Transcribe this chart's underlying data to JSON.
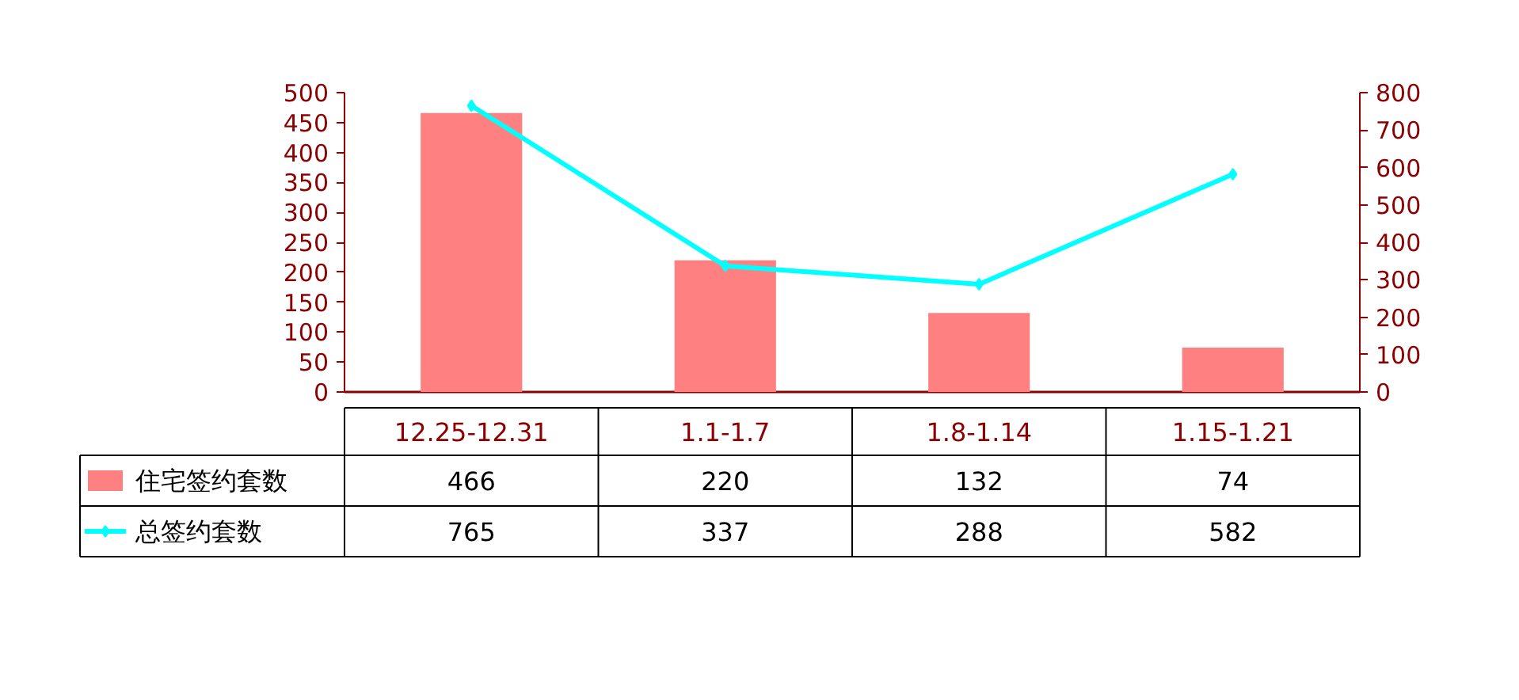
{
  "chart_data": {
    "type": "bar",
    "categories": [
      "12.25-12.31",
      "1.1-1.7",
      "1.8-1.14",
      "1.15-1.21"
    ],
    "series": [
      {
        "name": "住宅签约套数",
        "color": "#ff8080",
        "values": [
          466,
          220,
          132,
          74
        ]
      },
      {
        "name": "总签约套数",
        "type": "line",
        "axis": "y2",
        "color": "#00ffff",
        "values": [
          765,
          337,
          288,
          582
        ]
      }
    ],
    "ylim": [
      0,
      500
    ],
    "yticks": [
      0,
      50,
      100,
      150,
      200,
      250,
      300,
      350,
      400,
      450,
      500
    ],
    "y2lim": [
      0,
      800
    ],
    "y2ticks": [
      0,
      100,
      200,
      300,
      400,
      500,
      600,
      700,
      800
    ],
    "grid": false,
    "legend": "bottom left",
    "marker": "diamond",
    "line_style": "solid",
    "data_labels": true
  }
}
